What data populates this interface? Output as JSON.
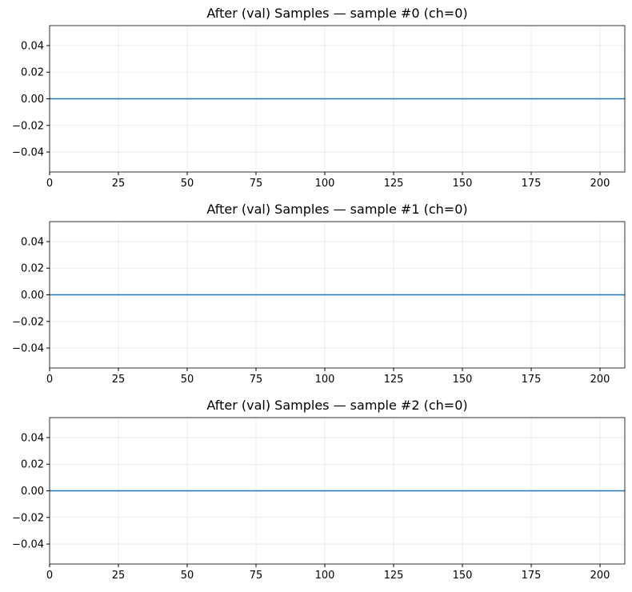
{
  "chart_data": [
    {
      "type": "line",
      "title": "After (val) Samples — sample #0 (ch=0)",
      "xlabel": "",
      "ylabel": "",
      "xlim": [
        0,
        209
      ],
      "ylim": [
        -0.055,
        0.055
      ],
      "xticks": [
        0,
        25,
        50,
        75,
        100,
        125,
        150,
        175,
        200
      ],
      "xtick_labels": [
        "0",
        "25",
        "50",
        "75",
        "100",
        "125",
        "150",
        "175",
        "200"
      ],
      "yticks": [
        -0.04,
        -0.02,
        0.0,
        0.02,
        0.04
      ],
      "ytick_labels": [
        "−0.04",
        "−0.02",
        "0.00",
        "0.02",
        "0.04"
      ],
      "grid": true,
      "series": [
        {
          "x": [
            0,
            209
          ],
          "y": [
            0,
            0
          ],
          "color": "#1f77b4"
        }
      ]
    },
    {
      "type": "line",
      "title": "After (val) Samples — sample #1 (ch=0)",
      "xlabel": "",
      "ylabel": "",
      "xlim": [
        0,
        209
      ],
      "ylim": [
        -0.055,
        0.055
      ],
      "xticks": [
        0,
        25,
        50,
        75,
        100,
        125,
        150,
        175,
        200
      ],
      "xtick_labels": [
        "0",
        "25",
        "50",
        "75",
        "100",
        "125",
        "150",
        "175",
        "200"
      ],
      "yticks": [
        -0.04,
        -0.02,
        0.0,
        0.02,
        0.04
      ],
      "ytick_labels": [
        "−0.04",
        "−0.02",
        "0.00",
        "0.02",
        "0.04"
      ],
      "grid": true,
      "series": [
        {
          "x": [
            0,
            209
          ],
          "y": [
            0,
            0
          ],
          "color": "#1f77b4"
        }
      ]
    },
    {
      "type": "line",
      "title": "After (val) Samples — sample #2 (ch=0)",
      "xlabel": "",
      "ylabel": "",
      "xlim": [
        0,
        209
      ],
      "ylim": [
        -0.055,
        0.055
      ],
      "xticks": [
        0,
        25,
        50,
        75,
        100,
        125,
        150,
        175,
        200
      ],
      "xtick_labels": [
        "0",
        "25",
        "50",
        "75",
        "100",
        "125",
        "150",
        "175",
        "200"
      ],
      "yticks": [
        -0.04,
        -0.02,
        0.0,
        0.02,
        0.04
      ],
      "ytick_labels": [
        "−0.04",
        "−0.02",
        "0.00",
        "0.02",
        "0.04"
      ],
      "grid": true,
      "series": [
        {
          "x": [
            0,
            209
          ],
          "y": [
            0,
            0
          ],
          "color": "#1f77b4"
        }
      ]
    }
  ]
}
